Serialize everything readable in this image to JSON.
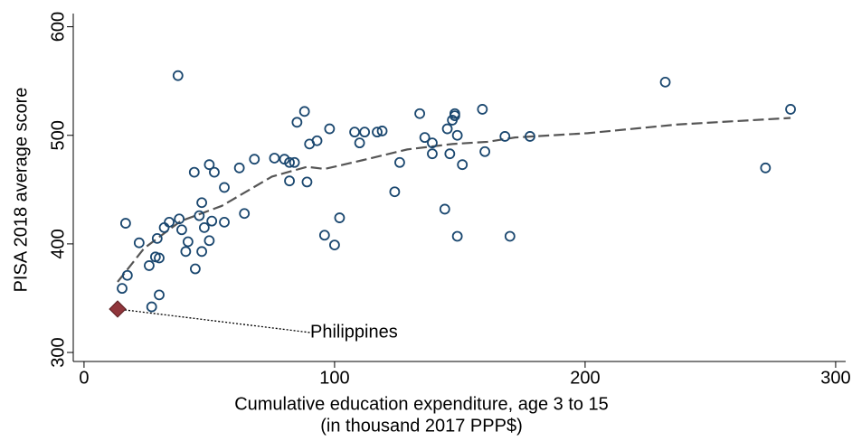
{
  "chart_data": {
    "type": "scatter",
    "xlabel": [
      "Cumulative education expenditure, age 3 to 15",
      "(in thousand 2017 PPP$)"
    ],
    "ylabel": "PISA 2018 average score",
    "xlim": [
      -4.3,
      304
    ],
    "ylim": [
      291.7,
      608
    ],
    "xticks": [
      0,
      100,
      200,
      300
    ],
    "yticks": [
      300,
      400,
      500,
      600
    ],
    "color": "#1a476f",
    "x": [
      37.5,
      232,
      282,
      272,
      159,
      148,
      148,
      134,
      88,
      85,
      98,
      108,
      112,
      117,
      119,
      136,
      93,
      90,
      147,
      145,
      149,
      110,
      139,
      146,
      160,
      139,
      151,
      168,
      178,
      126,
      68,
      76,
      80,
      82,
      84,
      62,
      50,
      52,
      44,
      82,
      89,
      56,
      124,
      47,
      64,
      102,
      46,
      38,
      34,
      51,
      56,
      16.6,
      32,
      48,
      39,
      144,
      96,
      100,
      149,
      170,
      22,
      29.2,
      41.5,
      50,
      40.6,
      47,
      28.5,
      30,
      44.4,
      26,
      17.3,
      15.2,
      30,
      27
    ],
    "y": [
      555,
      549,
      524,
      470,
      524,
      520,
      518,
      520,
      522,
      512,
      506,
      503,
      503,
      503,
      504,
      498,
      495,
      492,
      514,
      506,
      500,
      493,
      493,
      483,
      485,
      483,
      473,
      499,
      499,
      475,
      478,
      479,
      478,
      475,
      475,
      470,
      473,
      466,
      466,
      458,
      457,
      452,
      448,
      438,
      428,
      424,
      426,
      423,
      420,
      421,
      420,
      419,
      415,
      415,
      413,
      432,
      408,
      399,
      407,
      407,
      401,
      405,
      402,
      403,
      393,
      393,
      388,
      387,
      377,
      380,
      371,
      359,
      353,
      342
    ],
    "trend": {
      "color": "#555555",
      "x": [
        13.4,
        24,
        38.6,
        55,
        75,
        89,
        96,
        111,
        129,
        147,
        161,
        172,
        201,
        237,
        282
      ],
      "y": [
        365,
        396,
        421,
        435,
        462,
        471,
        469,
        477,
        487,
        492,
        494,
        498,
        502,
        510,
        516
      ]
    },
    "highlight": {
      "label": "Philippines",
      "x": 13.4,
      "y": 340,
      "color": "#90353b"
    }
  }
}
